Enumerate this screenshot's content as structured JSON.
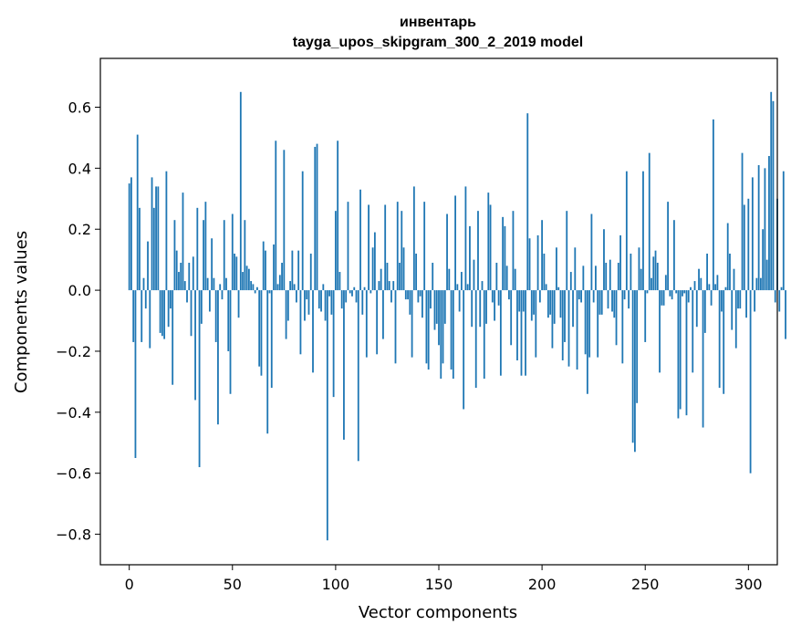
{
  "chart_data": {
    "type": "bar",
    "title": "инвентарь",
    "subtitle": "tayga_upos_skipgram_300_2_2019 model",
    "xlabel": "Vector components",
    "ylabel": "Components values",
    "xlim": [
      -14,
      314
    ],
    "ylim": [
      -0.9,
      0.76
    ],
    "xticks": [
      0,
      50,
      100,
      150,
      200,
      250,
      300
    ],
    "yticks": [
      0.6,
      0.4,
      0.2,
      0.0,
      -0.2,
      -0.4,
      -0.6,
      -0.8
    ],
    "ytick_labels": [
      "0.6",
      "0.4",
      "0.2",
      "0.0",
      "−0.2",
      "−0.4",
      "−0.6",
      "−0.8"
    ],
    "bar_color": "#1f77b4",
    "grid": false,
    "values": [
      0.35,
      0.37,
      -0.17,
      -0.55,
      0.51,
      0.27,
      -0.17,
      0.04,
      -0.06,
      0.16,
      -0.19,
      0.37,
      0.27,
      0.34,
      0.34,
      -0.14,
      -0.15,
      -0.16,
      0.39,
      -0.12,
      -0.06,
      -0.31,
      0.23,
      0.13,
      0.06,
      0.09,
      0.32,
      0.03,
      -0.04,
      0.09,
      -0.15,
      0.11,
      -0.36,
      0.27,
      -0.58,
      -0.11,
      0.23,
      0.29,
      0.04,
      -0.07,
      0.17,
      0.04,
      -0.17,
      -0.44,
      0.02,
      -0.03,
      0.23,
      0.04,
      -0.2,
      -0.34,
      0.25,
      0.12,
      0.11,
      -0.09,
      0.65,
      0.06,
      0.23,
      0.08,
      0.07,
      0.03,
      0.02,
      -0.01,
      0.01,
      -0.25,
      -0.28,
      0.16,
      0.13,
      -0.47,
      -0.01,
      -0.32,
      0.15,
      0.49,
      0.02,
      0.05,
      0.09,
      0.46,
      -0.16,
      -0.1,
      0.03,
      0.13,
      0.02,
      -0.04,
      0.13,
      -0.21,
      0.39,
      -0.1,
      -0.03,
      -0.08,
      0.12,
      -0.27,
      0.47,
      0.48,
      -0.06,
      -0.07,
      0.02,
      -0.1,
      -0.82,
      -0.02,
      -0.08,
      -0.35,
      0.26,
      0.49,
      0.06,
      -0.06,
      -0.49,
      -0.04,
      0.29,
      -0.01,
      -0.02,
      0.01,
      -0.04,
      -0.56,
      0.33,
      -0.08,
      0.01,
      -0.22,
      0.28,
      -0.01,
      0.14,
      0.19,
      -0.21,
      0.03,
      0.07,
      -0.16,
      0.28,
      0.09,
      0.03,
      -0.04,
      0.03,
      -0.24,
      0.29,
      0.09,
      0.26,
      0.14,
      -0.03,
      -0.03,
      -0.08,
      -0.22,
      0.34,
      0.12,
      -0.04,
      -0.02,
      -0.09,
      0.29,
      -0.24,
      -0.26,
      -0.06,
      0.09,
      -0.13,
      -0.11,
      -0.18,
      -0.29,
      -0.24,
      -0.11,
      0.25,
      0.07,
      -0.26,
      -0.29,
      0.31,
      0.02,
      -0.07,
      0.06,
      -0.39,
      0.34,
      0.02,
      0.21,
      -0.12,
      0.1,
      -0.32,
      0.26,
      -0.12,
      0.03,
      -0.29,
      -0.11,
      0.32,
      0.28,
      -0.04,
      -0.1,
      0.09,
      -0.05,
      -0.28,
      0.24,
      0.21,
      0.08,
      -0.03,
      -0.18,
      0.26,
      0.07,
      -0.23,
      -0.07,
      -0.28,
      -0.07,
      -0.28,
      0.58,
      0.17,
      -0.1,
      -0.08,
      -0.22,
      0.18,
      -0.04,
      0.23,
      0.12,
      0.02,
      -0.09,
      -0.08,
      -0.19,
      -0.11,
      0.14,
      0.01,
      -0.09,
      -0.23,
      -0.17,
      0.26,
      -0.25,
      0.06,
      -0.12,
      0.14,
      -0.26,
      -0.03,
      -0.04,
      0.08,
      -0.21,
      -0.34,
      -0.22,
      0.25,
      -0.04,
      0.08,
      -0.22,
      -0.08,
      -0.08,
      0.2,
      0.09,
      -0.06,
      0.1,
      -0.07,
      -0.09,
      -0.18,
      0.09,
      0.18,
      -0.24,
      -0.03,
      0.39,
      -0.06,
      0.12,
      -0.5,
      -0.53,
      -0.37,
      0.14,
      0.07,
      0.39,
      -0.17,
      -0.01,
      0.45,
      0.04,
      0.11,
      0.13,
      0.09,
      -0.27,
      -0.05,
      -0.05,
      0.05,
      0.29,
      -0.02,
      -0.03,
      0.23,
      -0.01,
      -0.42,
      -0.39,
      -0.02,
      -0.01,
      -0.41,
      -0.04,
      0.01,
      -0.27,
      0.03,
      -0.12,
      0.07,
      0.04,
      -0.45,
      -0.14,
      0.12,
      0.02,
      -0.05,
      0.56,
      0.02,
      0.05,
      -0.32,
      -0.07,
      -0.34,
      0.01,
      0.22,
      0.12,
      -0.13,
      0.07,
      -0.19,
      -0.06,
      -0.06,
      0.45,
      0.28,
      -0.09,
      0.3,
      -0.6,
      0.37,
      -0.07,
      0.04,
      0.41,
      0.04,
      0.2,
      0.4,
      0.1,
      0.44,
      0.65,
      0.62,
      -0.04,
      0.3,
      -0.07,
      0.01,
      0.39,
      -0.16
    ]
  }
}
